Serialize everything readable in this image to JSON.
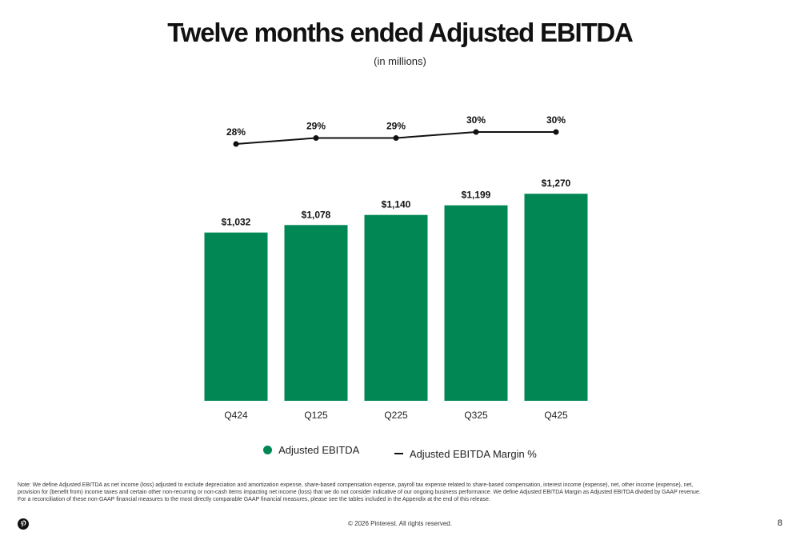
{
  "slide": {
    "title": "Twelve months ended Adjusted EBITDA",
    "subtitle": "(in millions)",
    "note": "Note: We define Adjusted EBITDA as net income (loss) adjusted to exclude depreciation and amortization expense, share-based compensation expense, payroll tax expense related to share-based compensation, interest income (expense), net, other income (expense), net, provision for (benefit from) income taxes and certain other non-recurring or non-cash items impacting net income (loss) that we do not consider indicative of our ongoing business performance. We define Adjusted EBITDA Margin as Adjusted EBITDA divided by GAAP revenue. For a reconciliation of these non-GAAP financial measures to the most directly comparable GAAP financial measures, please see the tables included in the Appendix at the end of this release.",
    "footer": "© 2026 Pinterest. All rights reserved.",
    "page_number": "8",
    "logo_icon": "pinterest-logo-icon",
    "colors": {
      "bar": "#008753",
      "line": "#111111"
    }
  },
  "chart_data": {
    "type": "bar",
    "categories": [
      "Q424",
      "Q125",
      "Q225",
      "Q325",
      "Q425"
    ],
    "series": [
      {
        "name": "Adjusted EBITDA",
        "type": "bar",
        "values": [
          1032,
          1078,
          1140,
          1199,
          1270
        ],
        "labels": [
          "$1,032",
          "$1,078",
          "$1,140",
          "$1,199",
          "$1,270"
        ]
      },
      {
        "name": "Adjusted EBITDA Margin %",
        "type": "line",
        "values": [
          28,
          29,
          29,
          30,
          30
        ],
        "labels": [
          "28%",
          "29%",
          "29%",
          "30%",
          "30%"
        ]
      }
    ],
    "legend": "bottom-center",
    "grid": false
  }
}
